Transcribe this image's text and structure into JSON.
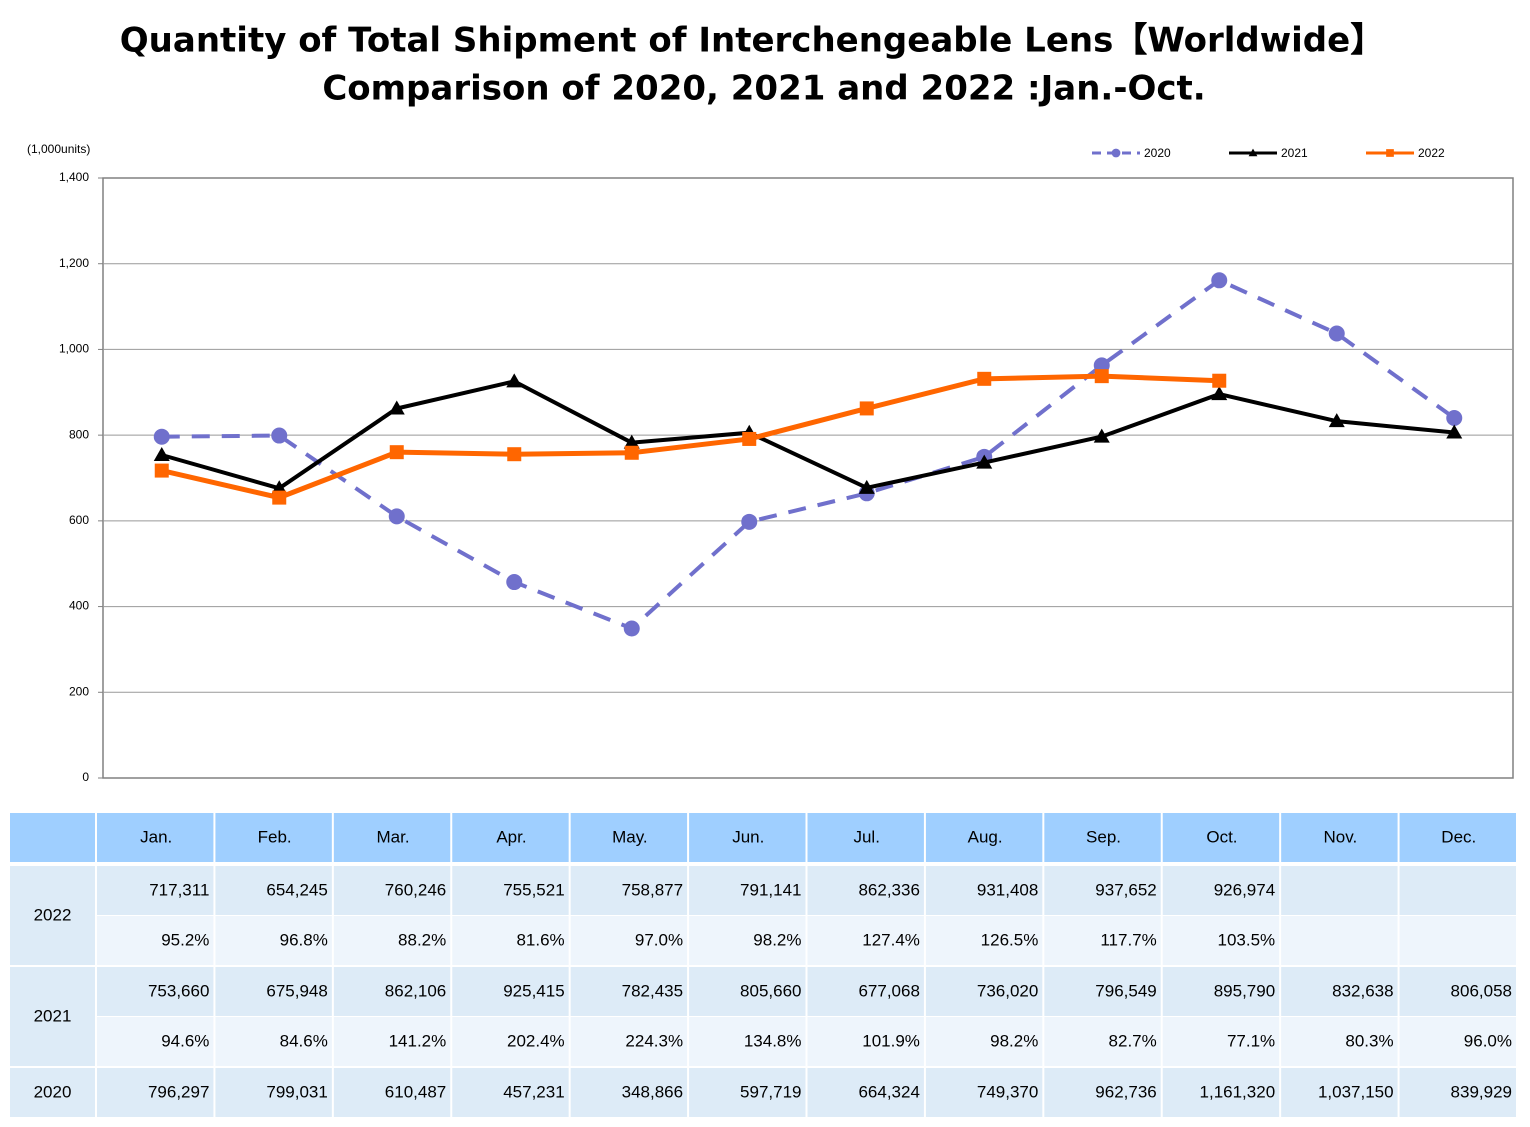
{
  "chart_data": {
    "type": "line",
    "title": "Quantity of Total Shipment of Interchengeable Lens【Worldwide】",
    "subtitle": "Comparison of 2020, 2021 and 2022 :Jan.-Oct.",
    "unit_label": "(1,000units)",
    "categories": [
      "Jan.",
      "Feb.",
      "Mar.",
      "Apr.",
      "May.",
      "Jun.",
      "Jul.",
      "Aug.",
      "Sep.",
      "Oct.",
      "Nov.",
      "Dec."
    ],
    "ylim": [
      0,
      1400
    ],
    "yticks": [
      0,
      200,
      400,
      600,
      800,
      {
        "value": 1000,
        "label": "1,000"
      },
      {
        "value": 1200,
        "label": "1,200"
      },
      {
        "value": 1400,
        "label": "1,400"
      }
    ],
    "grid": true,
    "legend": "top-right",
    "series": [
      {
        "name": "2020",
        "color": "#7070cc",
        "line_style": "dashed",
        "marker": "circle",
        "values": [
          796.297,
          799.031,
          610.487,
          457.231,
          348.866,
          597.719,
          664.324,
          749.37,
          962.736,
          1161.32,
          1037.15,
          839.929
        ],
        "value_labels": [
          "796,297",
          "799,031",
          "610,487",
          "457,231",
          "348,866",
          "597,719",
          "664,324",
          "749,370",
          "962,736",
          "1,161,320",
          "1,037,150",
          "839,929"
        ]
      },
      {
        "name": "2021",
        "color": "#000000",
        "line_style": "solid",
        "marker": "triangle",
        "values": [
          753.66,
          675.948,
          862.106,
          925.415,
          782.435,
          805.66,
          677.068,
          736.02,
          796.549,
          895.79,
          832.638,
          806.058
        ],
        "value_labels": [
          "753,660",
          "675,948",
          "862,106",
          "925,415",
          "782,435",
          "805,660",
          "677,068",
          "736,020",
          "796,549",
          "895,790",
          "832,638",
          "806,058"
        ],
        "ratio_labels": [
          "94.6%",
          "84.6%",
          "141.2%",
          "202.4%",
          "224.3%",
          "134.8%",
          "101.9%",
          "98.2%",
          "82.7%",
          "77.1%",
          "80.3%",
          "96.0%"
        ]
      },
      {
        "name": "2022",
        "color": "#ff6600",
        "line_style": "solid",
        "marker": "square",
        "values": [
          717.311,
          654.245,
          760.246,
          755.521,
          758.877,
          791.141,
          862.336,
          931.408,
          937.652,
          926.974,
          null,
          null
        ],
        "value_labels": [
          "717,311",
          "654,245",
          "760,246",
          "755,521",
          "758,877",
          "791,141",
          "862,336",
          "931,408",
          "937,652",
          "926,974",
          null,
          null
        ],
        "ratio_labels": [
          "95.2%",
          "96.8%",
          "88.2%",
          "81.6%",
          "97.0%",
          "98.2%",
          "127.4%",
          "126.5%",
          "117.7%",
          "103.5%",
          null,
          null
        ]
      }
    ]
  }
}
